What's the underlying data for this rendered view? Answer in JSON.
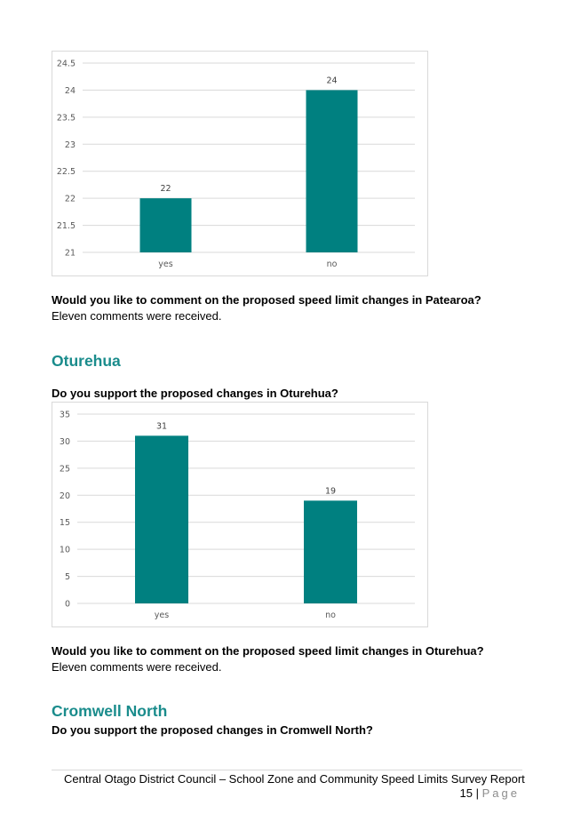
{
  "colors": {
    "bar": "#008080",
    "heading": "#1a8c8c",
    "grid": "#d9d9d9"
  },
  "chart_data": [
    {
      "type": "bar",
      "categories": [
        "yes",
        "no"
      ],
      "values": [
        22,
        24
      ],
      "ylim": [
        21,
        24.5
      ],
      "ticks": [
        "21",
        "21.5",
        "22",
        "22.5",
        "23",
        "23.5",
        "24",
        "24.5"
      ],
      "data_labels": [
        "22",
        "24"
      ],
      "grid": true
    },
    {
      "type": "bar",
      "categories": [
        "yes",
        "no"
      ],
      "values": [
        31,
        19
      ],
      "ylim": [
        0,
        35
      ],
      "ticks": [
        "0",
        "5",
        "10",
        "15",
        "20",
        "25",
        "30",
        "35"
      ],
      "data_labels": [
        "31",
        "19"
      ],
      "grid": true
    }
  ],
  "patearoa": {
    "comment_question": "Would you like to comment on the proposed speed limit changes in Patearoa?",
    "comment_answer": "Eleven comments were received."
  },
  "oturehua": {
    "heading": "Oturehua",
    "support_question": "Do you support the proposed changes in Oturehua?",
    "comment_question": "Would you like to comment on the proposed speed limit changes in Oturehua?",
    "comment_answer": "Eleven comments were received."
  },
  "cromwell_north": {
    "heading": "Cromwell North",
    "support_question": "Do you support the proposed changes in Cromwell North?"
  },
  "footer": {
    "text": "Central Otago District Council – School Zone and Community Speed Limits Survey Report",
    "page_number": "15",
    "separator": "|",
    "page_word": "Page"
  }
}
